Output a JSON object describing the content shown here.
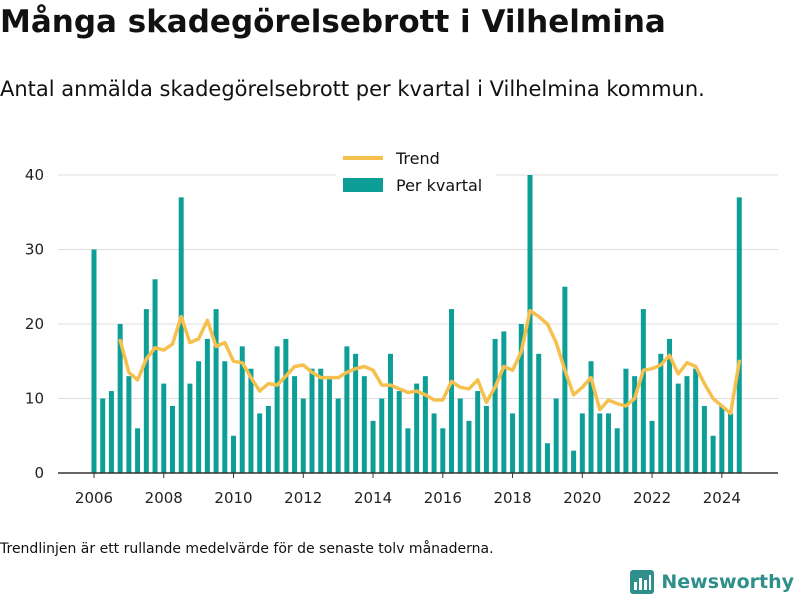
{
  "title": "Många skadegörelsebrott i Vilhelmina",
  "subtitle": "Antal anmälda skadegörelsebrott per kvartal i Vilhelmina kommun.",
  "footnote": "Trendlinjen är ett rullande medelvärde för de senaste tolv månaderna.",
  "brand": {
    "name": "Newsworthy",
    "icon": "newsworthy-logo-icon"
  },
  "colors": {
    "bars": "#0e9e98",
    "trend": "#f5c04e",
    "grid": "#dddddd",
    "axis": "#333333",
    "brand": "#2e8f8b"
  },
  "chart_data": {
    "type": "bar",
    "title": "",
    "xlabel": "",
    "ylabel": "",
    "ylim": [
      0,
      40
    ],
    "yticks": [
      0,
      10,
      20,
      30,
      40
    ],
    "xticks": [
      "2006",
      "2008",
      "2010",
      "2012",
      "2014",
      "2016",
      "2018",
      "2020",
      "2022",
      "2024"
    ],
    "legend": {
      "placement": "top",
      "entries": [
        "Trend",
        "Per kvartal"
      ]
    },
    "grid": true,
    "x_start": "2006Q1",
    "series": [
      {
        "name": "Per kvartal",
        "type": "bar",
        "values": [
          30,
          10,
          11,
          20,
          13,
          6,
          22,
          26,
          12,
          9,
          37,
          12,
          15,
          18,
          22,
          15,
          5,
          17,
          14,
          8,
          9,
          17,
          18,
          13,
          10,
          14,
          14,
          13,
          10,
          17,
          16,
          13,
          7,
          10,
          16,
          11,
          6,
          12,
          13,
          8,
          6,
          22,
          10,
          7,
          11,
          9,
          18,
          19,
          8,
          20,
          40,
          16,
          4,
          10,
          25,
          3,
          8,
          15,
          8,
          8,
          6,
          14,
          13,
          22,
          7,
          16,
          18,
          12,
          13,
          14,
          9,
          5,
          9,
          8,
          37
        ]
      },
      {
        "name": "Trend",
        "type": "line",
        "values": [
          null,
          null,
          null,
          17.8,
          13.5,
          12.5,
          15.3,
          16.8,
          16.5,
          17.3,
          21,
          17.5,
          18,
          20.5,
          17,
          17.5,
          15,
          14.8,
          12.8,
          11,
          12,
          11.8,
          13,
          14.3,
          14.5,
          13.5,
          12.8,
          12.8,
          12.8,
          13.5,
          14,
          14.3,
          13.8,
          11.8,
          11.8,
          11.3,
          10.8,
          11,
          10.5,
          9.8,
          9.8,
          12.3,
          11.5,
          11.3,
          12.5,
          9.5,
          11.5,
          14.3,
          13.8,
          16.3,
          21.8,
          21,
          20,
          17.5,
          13.8,
          10.5,
          11.5,
          12.8,
          8.5,
          9.8,
          9.3,
          9,
          10,
          13.8,
          14,
          14.5,
          15.8,
          13.3,
          14.8,
          14.3,
          12,
          10,
          9,
          8,
          15
        ]
      }
    ]
  }
}
